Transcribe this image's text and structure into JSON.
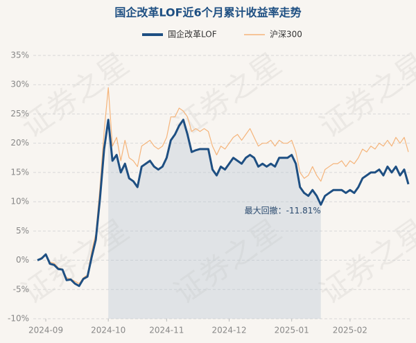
{
  "chart_data": {
    "type": "line",
    "title": "国企改革LOF近6个月累计收益率走势",
    "watermark": "证券之星",
    "annotation": "最大回撤：-11.81%",
    "categories": [
      null,
      null,
      "2024-09",
      null,
      null,
      null,
      null,
      null,
      null,
      null,
      null,
      null,
      null,
      null,
      null,
      null,
      null,
      "2024-10",
      null,
      null,
      null,
      null,
      null,
      null,
      null,
      null,
      null,
      null,
      null,
      null,
      null,
      "2024-11",
      null,
      null,
      null,
      null,
      null,
      null,
      null,
      null,
      null,
      null,
      null,
      null,
      null,
      null,
      "2024-12",
      null,
      null,
      null,
      null,
      null,
      null,
      null,
      null,
      null,
      null,
      null,
      null,
      null,
      null,
      "2025-01",
      null,
      null,
      null,
      null,
      null,
      null,
      null,
      null,
      null,
      null,
      null,
      null,
      null,
      "2025-02",
      null,
      null,
      null,
      null,
      null,
      null,
      null,
      null,
      null,
      null,
      null,
      null,
      null,
      null
    ],
    "series": [
      {
        "name": "国企改革LOF",
        "color": "#1e4f82",
        "values": [
          0.0,
          0.3,
          1.0,
          -0.6,
          -0.8,
          -1.5,
          -1.6,
          -3.4,
          -3.3,
          -4.0,
          -4.4,
          -3.2,
          -2.8,
          0.5,
          3.5,
          10.5,
          19.0,
          24.0,
          17.0,
          18.0,
          15.0,
          16.5,
          14.0,
          13.5,
          12.5,
          16.0,
          16.5,
          17.0,
          16.0,
          15.5,
          16.0,
          17.5,
          20.5,
          21.5,
          23.0,
          24.0,
          21.5,
          18.5,
          18.8,
          19.0,
          19.0,
          19.0,
          15.5,
          14.5,
          16.0,
          15.5,
          16.5,
          17.5,
          17.0,
          16.5,
          17.5,
          18.0,
          17.5,
          16.0,
          16.5,
          16.0,
          16.5,
          16.0,
          17.5,
          17.5,
          17.5,
          18.0,
          16.5,
          12.5,
          11.5,
          11.0,
          12.0,
          11.0,
          9.5,
          11.0,
          11.5,
          12.0,
          12.0,
          12.0,
          11.5,
          12.0,
          11.5,
          12.5,
          14.0,
          14.5,
          15.0,
          15.0,
          15.5,
          14.5,
          16.0,
          15.0,
          16.0,
          14.5,
          15.5,
          13.0
        ]
      },
      {
        "name": "沪深300",
        "color": "#f5b47a",
        "values": [
          0.0,
          0.5,
          0.8,
          -0.3,
          -0.5,
          -1.3,
          -1.5,
          -3.0,
          -3.2,
          -3.6,
          -4.0,
          -3.0,
          -2.5,
          1.5,
          4.5,
          12.5,
          22.0,
          29.5,
          19.5,
          21.0,
          17.0,
          20.5,
          17.5,
          17.0,
          16.0,
          19.5,
          20.0,
          20.5,
          19.5,
          19.0,
          19.5,
          21.0,
          24.5,
          24.5,
          26.0,
          25.5,
          24.5,
          22.0,
          22.5,
          22.0,
          22.5,
          22.0,
          19.5,
          18.0,
          19.5,
          19.0,
          20.0,
          21.0,
          21.5,
          20.5,
          21.5,
          22.5,
          21.0,
          19.5,
          20.0,
          20.0,
          20.5,
          19.5,
          20.5,
          20.0,
          20.0,
          20.5,
          18.5,
          15.0,
          14.0,
          14.5,
          16.0,
          14.5,
          13.5,
          15.5,
          16.0,
          16.5,
          16.5,
          17.0,
          16.0,
          17.0,
          16.5,
          17.5,
          19.0,
          18.5,
          19.5,
          19.0,
          20.0,
          19.5,
          20.5,
          19.5,
          21.0,
          20.0,
          21.0,
          18.5
        ]
      }
    ],
    "ylim": [
      -10,
      35
    ],
    "yticks": [
      {
        "value": -10,
        "label": "-10%"
      },
      {
        "value": -5,
        "label": "-5%"
      },
      {
        "value": 0,
        "label": "0%"
      },
      {
        "value": 5,
        "label": "5%"
      },
      {
        "value": 10,
        "label": "10%"
      },
      {
        "value": 15,
        "label": "15%"
      },
      {
        "value": 20,
        "label": "20%"
      },
      {
        "value": 25,
        "label": "25%"
      },
      {
        "value": 30,
        "label": "30%"
      },
      {
        "value": 35,
        "label": "35%"
      }
    ],
    "grid": true,
    "legend": "top"
  }
}
